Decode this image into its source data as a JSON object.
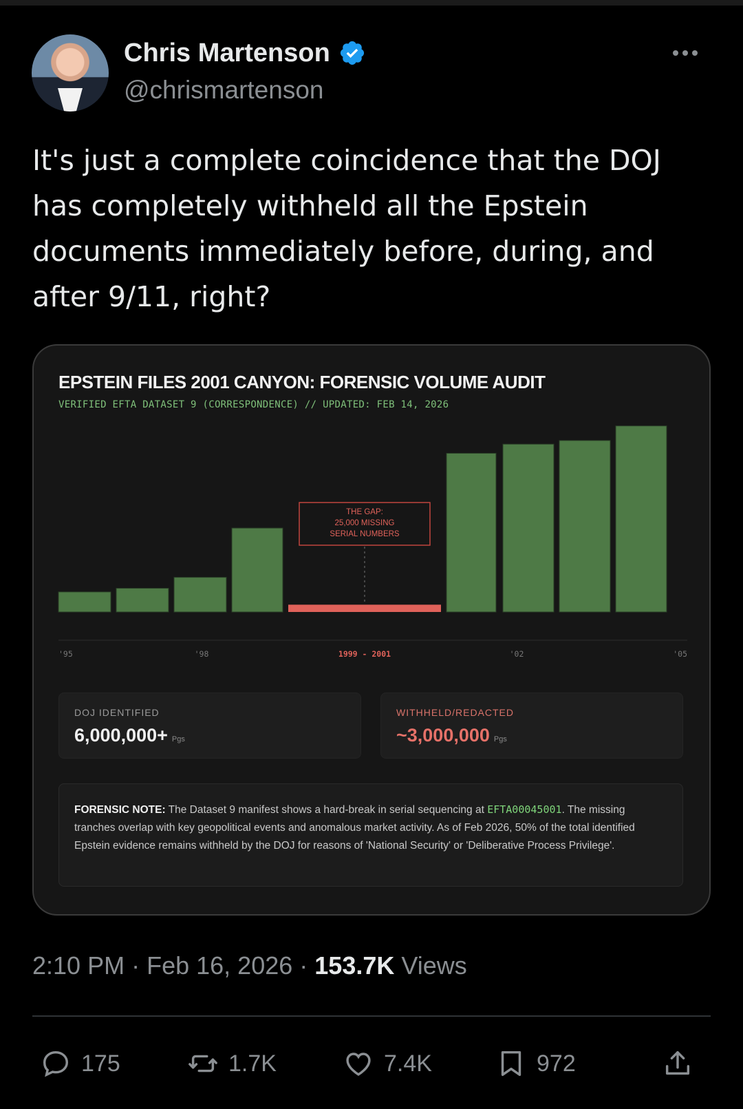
{
  "author": {
    "name": "Chris Martenson",
    "handle": "@chrismartenson",
    "verified": true,
    "verified_color": "#1d9bf0"
  },
  "tweet": {
    "text": "It's just a complete coincidence that the DOJ\nhas completely withheld all the Epstein\ndocuments immediately before, during, and\nafter 9/11, right?"
  },
  "card": {
    "title": "EPSTEIN FILES 2001 CANYON: FORENSIC VOLUME AUDIT",
    "subtitle": "VERIFIED EFTA DATASET 9 (CORRESPONDENCE) // UPDATED: FEB 14, 2026",
    "stats": {
      "identified_label": "DOJ IDENTIFIED",
      "identified_value": "6,000,000+",
      "identified_unit": "Pgs",
      "withheld_label": "WITHHELD/REDACTED",
      "withheld_value": "~3,000,000",
      "withheld_unit": "Pgs"
    },
    "note": {
      "lead": "FORENSIC NOTE:",
      "text_before": " The Dataset 9 manifest shows a hard-break in serial sequencing at ",
      "serial": "EFTA00045001",
      "text_after": ". The missing tranches overlap with key geopolitical events and anomalous market activity. As of Feb 2026, 50% of the total identified Epstein evidence remains withheld by the DOJ for reasons of 'National Security' or 'Deliberative Process Privilege'."
    }
  },
  "chart_data": {
    "type": "bar",
    "title": "EPSTEIN FILES 2001 CANYON: FORENSIC VOLUME AUDIT",
    "bar_color": "#4e7a46",
    "gap_color": "#e0625a",
    "ylim": [
      0,
      100
    ],
    "bars": [
      {
        "segment": "pre",
        "value": 11
      },
      {
        "segment": "pre",
        "value": 13
      },
      {
        "segment": "pre",
        "value": 19
      },
      {
        "segment": "pre",
        "value": 46
      },
      {
        "segment": "gap",
        "value": 4
      },
      {
        "segment": "post",
        "value": 87
      },
      {
        "segment": "post",
        "value": 92
      },
      {
        "segment": "post",
        "value": 94
      },
      {
        "segment": "post",
        "value": 102
      }
    ],
    "tick_labels": [
      "'95",
      "'98",
      "1999 - 2001",
      "'02",
      "'05"
    ],
    "annotation": [
      "THE GAP:",
      "25,000 MISSING",
      "SERIAL NUMBERS"
    ]
  },
  "footer": {
    "time": "2:10 PM",
    "date": "Feb 16, 2026",
    "views_count": "153.7K",
    "views_label": "Views"
  },
  "actions": {
    "replies": "175",
    "reposts": "1.7K",
    "likes": "7.4K",
    "bookmarks": "972"
  }
}
